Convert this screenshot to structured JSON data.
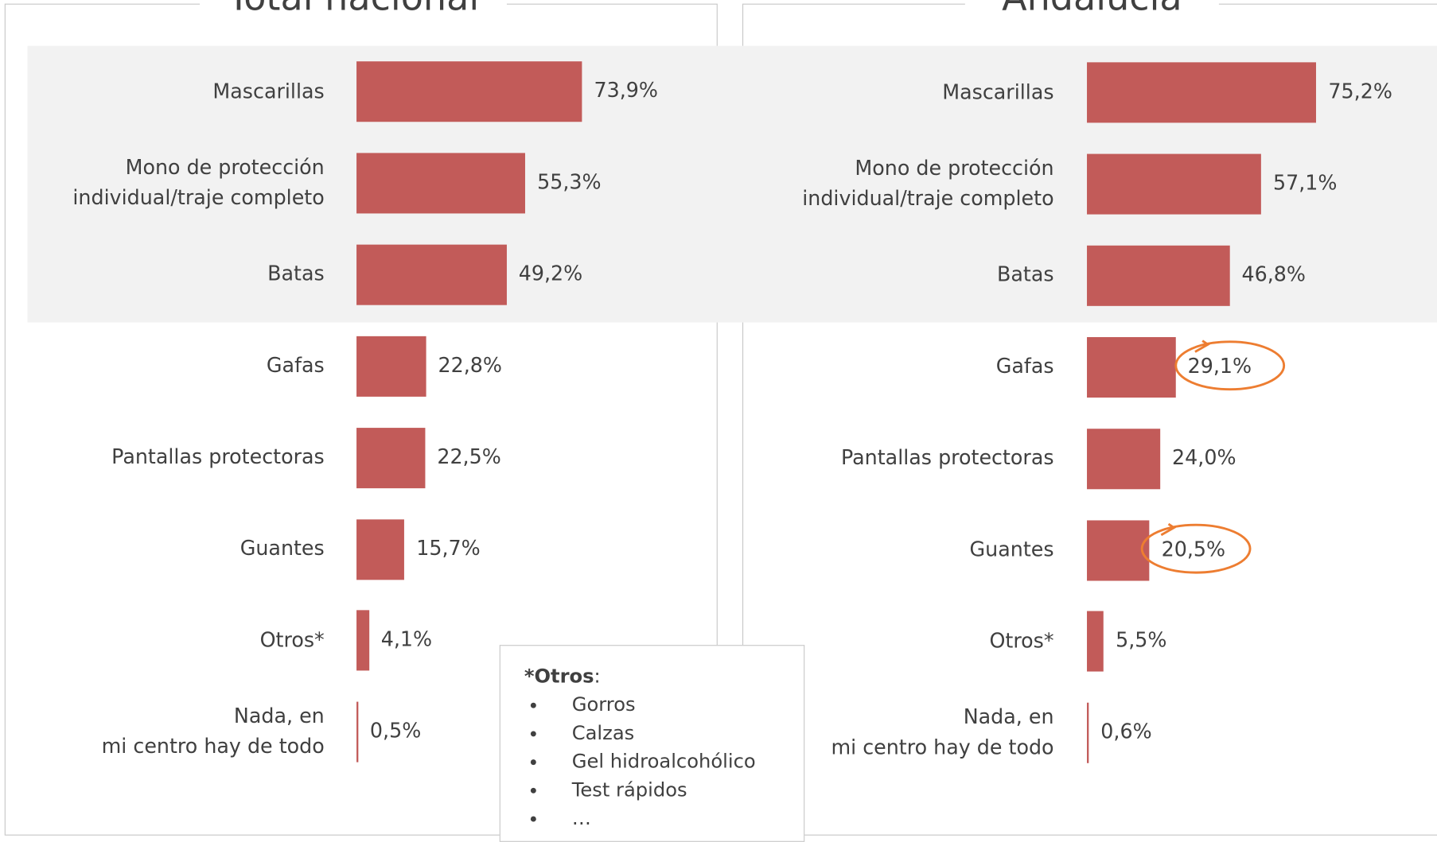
{
  "chart_data": [
    {
      "type": "bar",
      "orientation": "horizontal",
      "title": "Total nacional",
      "color": "#c25b59",
      "categories": [
        "Mascarillas",
        "Mono de protección\nindividual/traje completo",
        "Batas",
        "Gafas",
        "Pantallas protectoras",
        "Guantes",
        "Otros*",
        "Nada, en\nmi centro hay de todo"
      ],
      "values": [
        73.9,
        55.3,
        49.2,
        22.8,
        22.5,
        15.7,
        4.1,
        0.5
      ],
      "value_labels": [
        "73,9%",
        "55,3%",
        "49,2%",
        "22,8%",
        "22,5%",
        "15,7%",
        "4,1%",
        "0,5%"
      ]
    },
    {
      "type": "bar",
      "orientation": "horizontal",
      "title": "Andalucía",
      "color": "#c25b59",
      "categories": [
        "Mascarillas",
        "Mono de protección\nindividual/traje completo",
        "Batas",
        "Gafas",
        "Pantallas protectoras",
        "Guantes",
        "Otros*",
        "Nada, en\nmi centro hay de todo"
      ],
      "values": [
        75.2,
        57.1,
        46.8,
        29.1,
        24.0,
        20.5,
        5.5,
        0.6
      ],
      "value_labels": [
        "75,2%",
        "57,1%",
        "46,8%",
        "29,1%",
        "24,0%",
        "20,5%",
        "5,5%",
        "0,6%"
      ]
    }
  ],
  "note": {
    "heading": "*Otros",
    "separator": ":",
    "items": [
      "Gorros",
      "Calzas",
      "Gel hidroalcohólico",
      "Test rápidos",
      "…"
    ]
  }
}
